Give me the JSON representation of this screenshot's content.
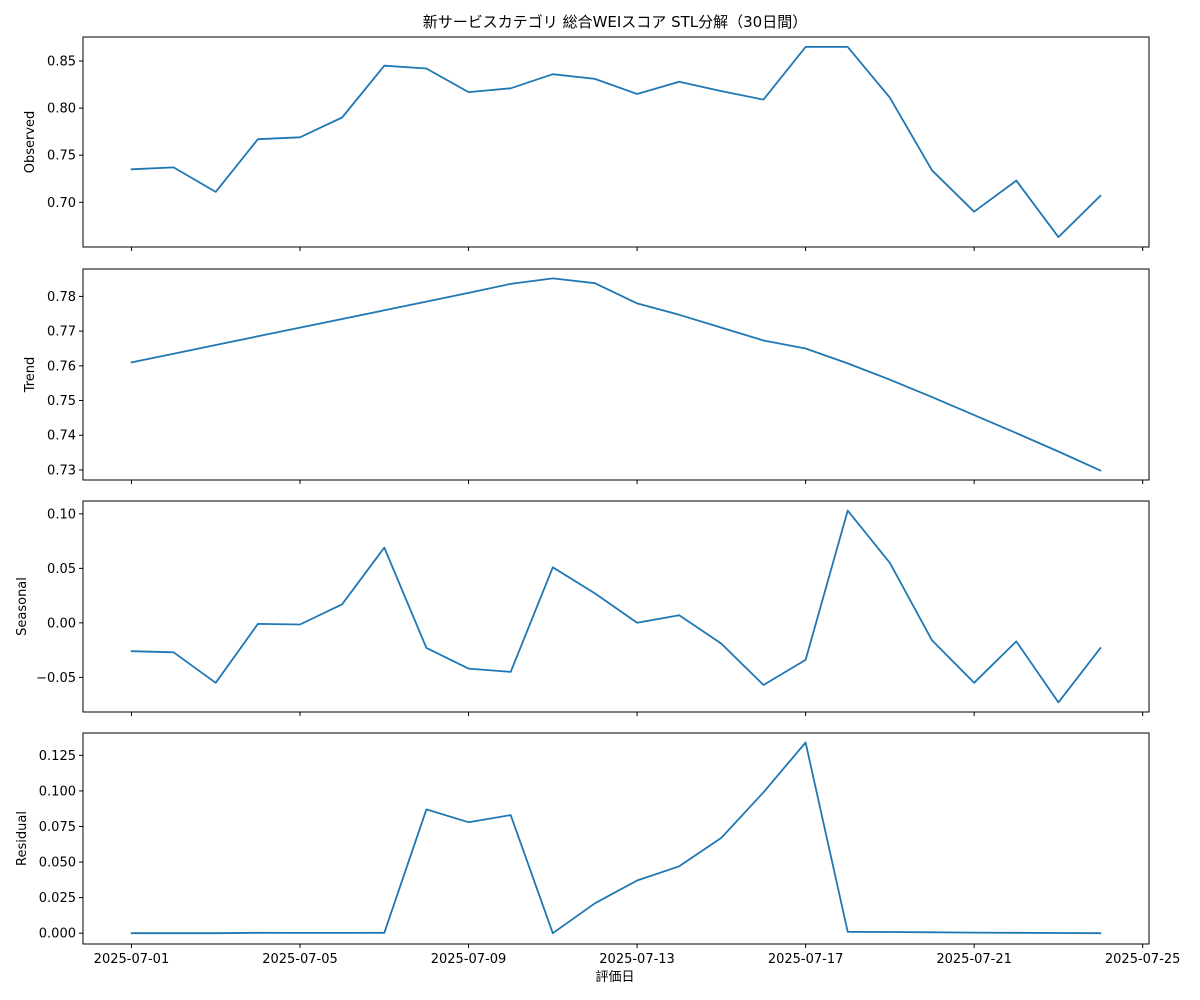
{
  "title": "新サービスカテゴリ 総合WEIスコア STL分解（30日間）",
  "xlabel": "評価日",
  "x_ticks": [
    "2025-07-01",
    "2025-07-05",
    "2025-07-09",
    "2025-07-13",
    "2025-07-17",
    "2025-07-21",
    "2025-07-25"
  ],
  "line_color": "#1f77b4",
  "chart_data": [
    {
      "type": "line",
      "ylabel": "Observed",
      "x": [
        "2025-07-01",
        "2025-07-02",
        "2025-07-03",
        "2025-07-04",
        "2025-07-05",
        "2025-07-06",
        "2025-07-07",
        "2025-07-08",
        "2025-07-09",
        "2025-07-10",
        "2025-07-11",
        "2025-07-12",
        "2025-07-13",
        "2025-07-14",
        "2025-07-15",
        "2025-07-16",
        "2025-07-17",
        "2025-07-18",
        "2025-07-19",
        "2025-07-20",
        "2025-07-21",
        "2025-07-22",
        "2025-07-23",
        "2025-07-24"
      ],
      "values": [
        0.735,
        0.737,
        0.711,
        0.767,
        0.769,
        0.79,
        0.845,
        0.842,
        0.817,
        0.821,
        0.836,
        0.831,
        0.815,
        0.828,
        0.818,
        0.809,
        0.865,
        0.865,
        0.811,
        0.734,
        0.69,
        0.723,
        0.663,
        0.707
      ],
      "yticks": [
        0.7,
        0.75,
        0.8,
        0.85
      ],
      "ytick_labels": [
        "0.70",
        "0.75",
        "0.80",
        "0.85"
      ],
      "ylim": [
        0.6525,
        0.8755
      ]
    },
    {
      "type": "line",
      "ylabel": "Trend",
      "x": [
        "2025-07-01",
        "2025-07-02",
        "2025-07-03",
        "2025-07-04",
        "2025-07-05",
        "2025-07-06",
        "2025-07-07",
        "2025-07-08",
        "2025-07-09",
        "2025-07-10",
        "2025-07-11",
        "2025-07-12",
        "2025-07-13",
        "2025-07-14",
        "2025-07-15",
        "2025-07-16",
        "2025-07-17",
        "2025-07-18",
        "2025-07-19",
        "2025-07-20",
        "2025-07-21",
        "2025-07-22",
        "2025-07-23",
        "2025-07-24"
      ],
      "values": [
        0.761,
        0.7635,
        0.766,
        0.7685,
        0.771,
        0.7735,
        0.776,
        0.7785,
        0.781,
        0.7836,
        0.7852,
        0.7838,
        0.778,
        0.7747,
        0.771,
        0.7673,
        0.765,
        0.7607,
        0.756,
        0.751,
        0.7458,
        0.7406,
        0.7353,
        0.7298
      ],
      "yticks": [
        0.73,
        0.74,
        0.75,
        0.76,
        0.77,
        0.78
      ],
      "ytick_labels": [
        "0.73",
        "0.74",
        "0.75",
        "0.76",
        "0.77",
        "0.78"
      ],
      "ylim": [
        0.7271,
        0.7879
      ]
    },
    {
      "type": "line",
      "ylabel": "Seasonal",
      "x": [
        "2025-07-01",
        "2025-07-02",
        "2025-07-03",
        "2025-07-04",
        "2025-07-05",
        "2025-07-06",
        "2025-07-07",
        "2025-07-08",
        "2025-07-09",
        "2025-07-10",
        "2025-07-11",
        "2025-07-12",
        "2025-07-13",
        "2025-07-14",
        "2025-07-15",
        "2025-07-16",
        "2025-07-17",
        "2025-07-18",
        "2025-07-19",
        "2025-07-20",
        "2025-07-21",
        "2025-07-22",
        "2025-07-23",
        "2025-07-24"
      ],
      "values": [
        -0.026,
        -0.027,
        -0.055,
        -0.001,
        -0.0015,
        0.017,
        0.069,
        -0.023,
        -0.042,
        -0.045,
        0.051,
        0.027,
        0.0,
        0.007,
        -0.019,
        -0.057,
        -0.034,
        0.103,
        0.055,
        -0.016,
        -0.055,
        -0.017,
        -0.073,
        -0.023
      ],
      "yticks": [
        -0.05,
        0.0,
        0.05,
        0.1
      ],
      "ytick_labels": [
        "−0.05",
        "0.00",
        "0.05",
        "0.10"
      ],
      "ylim": [
        -0.0818,
        0.1118
      ]
    },
    {
      "type": "line",
      "ylabel": "Residual",
      "x": [
        "2025-07-01",
        "2025-07-02",
        "2025-07-03",
        "2025-07-04",
        "2025-07-05",
        "2025-07-06",
        "2025-07-07",
        "2025-07-08",
        "2025-07-09",
        "2025-07-10",
        "2025-07-11",
        "2025-07-12",
        "2025-07-13",
        "2025-07-14",
        "2025-07-15",
        "2025-07-16",
        "2025-07-17",
        "2025-07-18",
        "2025-07-19",
        "2025-07-20",
        "2025-07-21",
        "2025-07-22",
        "2025-07-23",
        "2025-07-24"
      ],
      "values": [
        0.0,
        0.0,
        0.0,
        0.0003,
        0.0002,
        0.0002,
        0.0003,
        0.087,
        0.078,
        0.083,
        0.0,
        0.021,
        0.037,
        0.047,
        0.067,
        0.099,
        0.134,
        0.001,
        0.0008,
        0.0006,
        0.0004,
        0.0003,
        0.0001,
        0.0
      ],
      "yticks": [
        0.0,
        0.025,
        0.05,
        0.075,
        0.1,
        0.125
      ],
      "ytick_labels": [
        "0.000",
        "0.025",
        "0.050",
        "0.075",
        "0.100",
        "0.125"
      ],
      "ylim": [
        -0.0076,
        0.1407
      ]
    }
  ]
}
